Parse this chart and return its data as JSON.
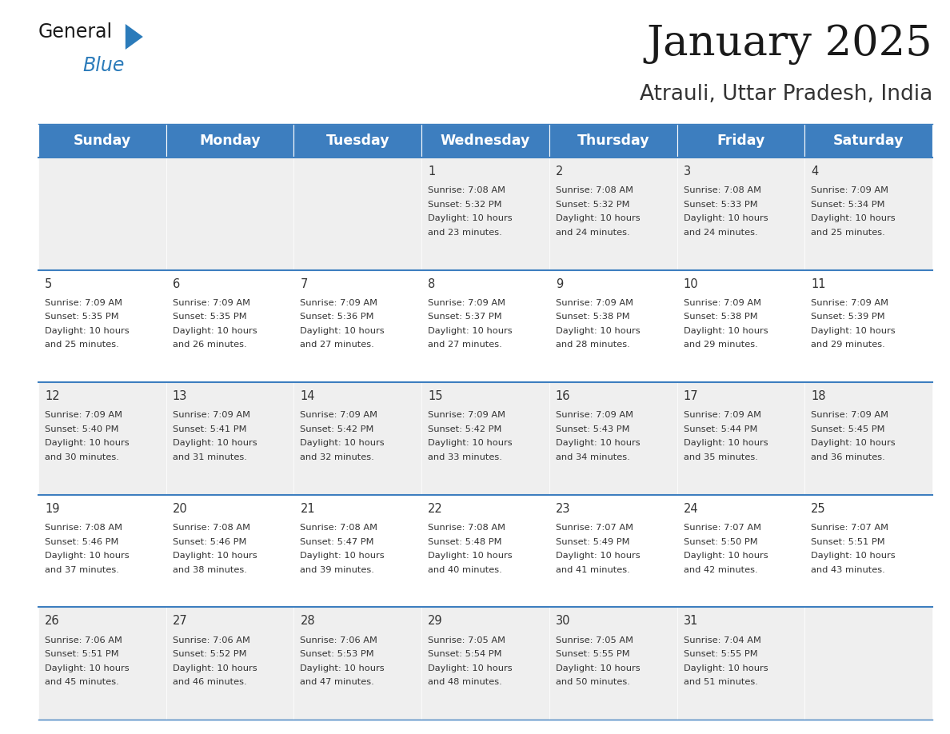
{
  "title": "January 2025",
  "subtitle": "Atrauli, Uttar Pradesh, India",
  "header_bg": "#3d7ebf",
  "header_text_color": "#ffffff",
  "day_names": [
    "Sunday",
    "Monday",
    "Tuesday",
    "Wednesday",
    "Thursday",
    "Friday",
    "Saturday"
  ],
  "cell_bg_even": "#efefef",
  "cell_bg_odd": "#ffffff",
  "cell_border_color": "#3d7ebf",
  "text_color": "#333333",
  "days": [
    {
      "day": 1,
      "col": 3,
      "row": 0,
      "sunrise": "7:08 AM",
      "sunset": "5:32 PM",
      "dl_hrs": 10,
      "dl_min": 23
    },
    {
      "day": 2,
      "col": 4,
      "row": 0,
      "sunrise": "7:08 AM",
      "sunset": "5:32 PM",
      "dl_hrs": 10,
      "dl_min": 24
    },
    {
      "day": 3,
      "col": 5,
      "row": 0,
      "sunrise": "7:08 AM",
      "sunset": "5:33 PM",
      "dl_hrs": 10,
      "dl_min": 24
    },
    {
      "day": 4,
      "col": 6,
      "row": 0,
      "sunrise": "7:09 AM",
      "sunset": "5:34 PM",
      "dl_hrs": 10,
      "dl_min": 25
    },
    {
      "day": 5,
      "col": 0,
      "row": 1,
      "sunrise": "7:09 AM",
      "sunset": "5:35 PM",
      "dl_hrs": 10,
      "dl_min": 25
    },
    {
      "day": 6,
      "col": 1,
      "row": 1,
      "sunrise": "7:09 AM",
      "sunset": "5:35 PM",
      "dl_hrs": 10,
      "dl_min": 26
    },
    {
      "day": 7,
      "col": 2,
      "row": 1,
      "sunrise": "7:09 AM",
      "sunset": "5:36 PM",
      "dl_hrs": 10,
      "dl_min": 27
    },
    {
      "day": 8,
      "col": 3,
      "row": 1,
      "sunrise": "7:09 AM",
      "sunset": "5:37 PM",
      "dl_hrs": 10,
      "dl_min": 27
    },
    {
      "day": 9,
      "col": 4,
      "row": 1,
      "sunrise": "7:09 AM",
      "sunset": "5:38 PM",
      "dl_hrs": 10,
      "dl_min": 28
    },
    {
      "day": 10,
      "col": 5,
      "row": 1,
      "sunrise": "7:09 AM",
      "sunset": "5:38 PM",
      "dl_hrs": 10,
      "dl_min": 29
    },
    {
      "day": 11,
      "col": 6,
      "row": 1,
      "sunrise": "7:09 AM",
      "sunset": "5:39 PM",
      "dl_hrs": 10,
      "dl_min": 29
    },
    {
      "day": 12,
      "col": 0,
      "row": 2,
      "sunrise": "7:09 AM",
      "sunset": "5:40 PM",
      "dl_hrs": 10,
      "dl_min": 30
    },
    {
      "day": 13,
      "col": 1,
      "row": 2,
      "sunrise": "7:09 AM",
      "sunset": "5:41 PM",
      "dl_hrs": 10,
      "dl_min": 31
    },
    {
      "day": 14,
      "col": 2,
      "row": 2,
      "sunrise": "7:09 AM",
      "sunset": "5:42 PM",
      "dl_hrs": 10,
      "dl_min": 32
    },
    {
      "day": 15,
      "col": 3,
      "row": 2,
      "sunrise": "7:09 AM",
      "sunset": "5:42 PM",
      "dl_hrs": 10,
      "dl_min": 33
    },
    {
      "day": 16,
      "col": 4,
      "row": 2,
      "sunrise": "7:09 AM",
      "sunset": "5:43 PM",
      "dl_hrs": 10,
      "dl_min": 34
    },
    {
      "day": 17,
      "col": 5,
      "row": 2,
      "sunrise": "7:09 AM",
      "sunset": "5:44 PM",
      "dl_hrs": 10,
      "dl_min": 35
    },
    {
      "day": 18,
      "col": 6,
      "row": 2,
      "sunrise": "7:09 AM",
      "sunset": "5:45 PM",
      "dl_hrs": 10,
      "dl_min": 36
    },
    {
      "day": 19,
      "col": 0,
      "row": 3,
      "sunrise": "7:08 AM",
      "sunset": "5:46 PM",
      "dl_hrs": 10,
      "dl_min": 37
    },
    {
      "day": 20,
      "col": 1,
      "row": 3,
      "sunrise": "7:08 AM",
      "sunset": "5:46 PM",
      "dl_hrs": 10,
      "dl_min": 38
    },
    {
      "day": 21,
      "col": 2,
      "row": 3,
      "sunrise": "7:08 AM",
      "sunset": "5:47 PM",
      "dl_hrs": 10,
      "dl_min": 39
    },
    {
      "day": 22,
      "col": 3,
      "row": 3,
      "sunrise": "7:08 AM",
      "sunset": "5:48 PM",
      "dl_hrs": 10,
      "dl_min": 40
    },
    {
      "day": 23,
      "col": 4,
      "row": 3,
      "sunrise": "7:07 AM",
      "sunset": "5:49 PM",
      "dl_hrs": 10,
      "dl_min": 41
    },
    {
      "day": 24,
      "col": 5,
      "row": 3,
      "sunrise": "7:07 AM",
      "sunset": "5:50 PM",
      "dl_hrs": 10,
      "dl_min": 42
    },
    {
      "day": 25,
      "col": 6,
      "row": 3,
      "sunrise": "7:07 AM",
      "sunset": "5:51 PM",
      "dl_hrs": 10,
      "dl_min": 43
    },
    {
      "day": 26,
      "col": 0,
      "row": 4,
      "sunrise": "7:06 AM",
      "sunset": "5:51 PM",
      "dl_hrs": 10,
      "dl_min": 45
    },
    {
      "day": 27,
      "col": 1,
      "row": 4,
      "sunrise": "7:06 AM",
      "sunset": "5:52 PM",
      "dl_hrs": 10,
      "dl_min": 46
    },
    {
      "day": 28,
      "col": 2,
      "row": 4,
      "sunrise": "7:06 AM",
      "sunset": "5:53 PM",
      "dl_hrs": 10,
      "dl_min": 47
    },
    {
      "day": 29,
      "col": 3,
      "row": 4,
      "sunrise": "7:05 AM",
      "sunset": "5:54 PM",
      "dl_hrs": 10,
      "dl_min": 48
    },
    {
      "day": 30,
      "col": 4,
      "row": 4,
      "sunrise": "7:05 AM",
      "sunset": "5:55 PM",
      "dl_hrs": 10,
      "dl_min": 50
    },
    {
      "day": 31,
      "col": 5,
      "row": 4,
      "sunrise": "7:04 AM",
      "sunset": "5:55 PM",
      "dl_hrs": 10,
      "dl_min": 51
    }
  ],
  "num_rows": 5,
  "num_cols": 7
}
